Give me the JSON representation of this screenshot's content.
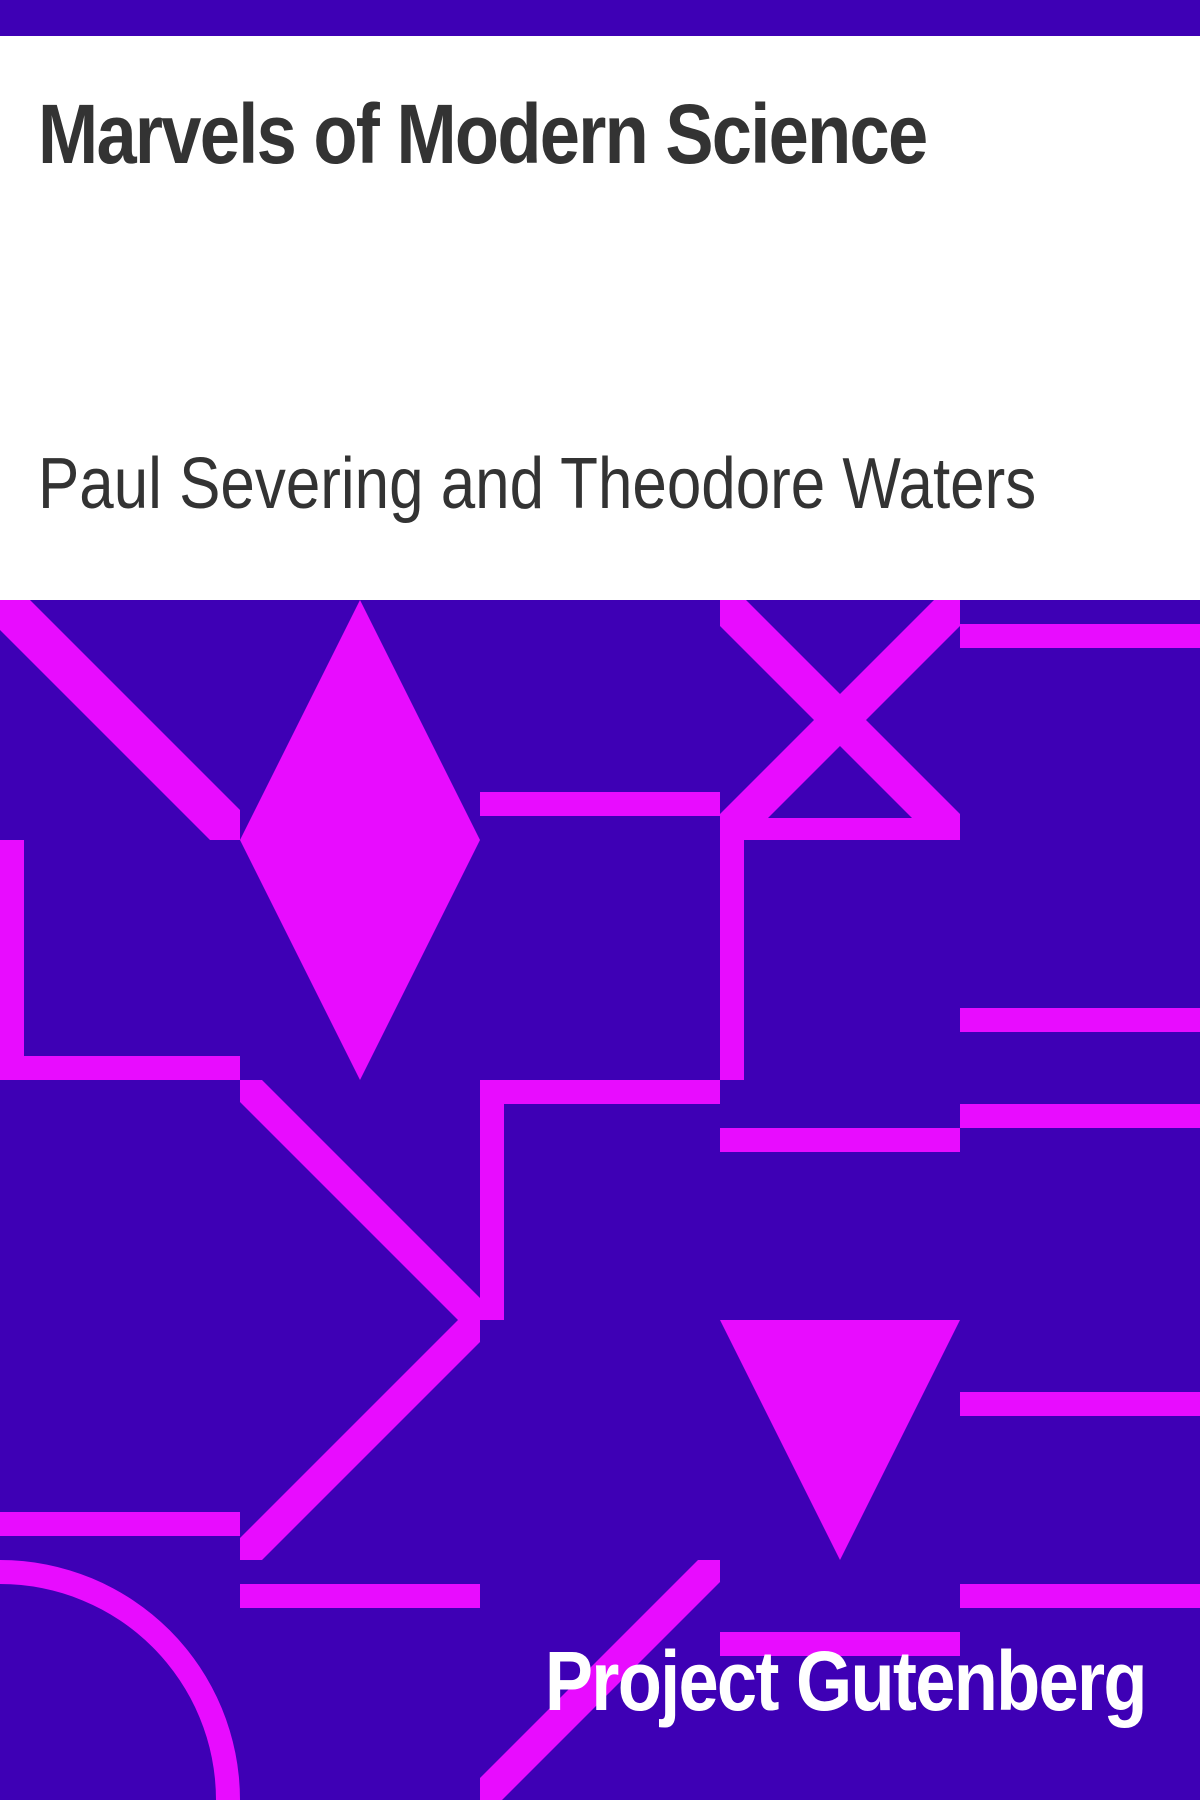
{
  "cover": {
    "title": "Marvels of Modern Science",
    "author": "Paul Severing and Theodore Waters",
    "publisher": "Project Gutenberg"
  },
  "colors": {
    "background": "#ffffff",
    "band": "#3e00b5",
    "pattern": "#e80cff",
    "title_text": "#333333",
    "publisher_text": "#ffffff"
  }
}
